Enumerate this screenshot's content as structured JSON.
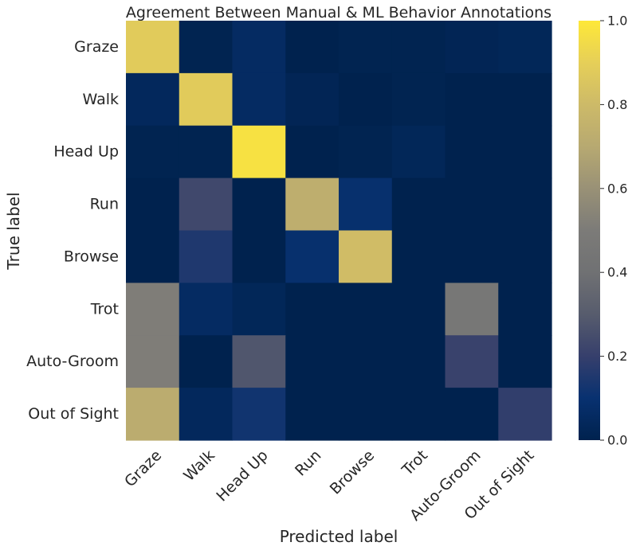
{
  "chart_data": {
    "type": "heatmap",
    "title": "Agreement Between Manual & ML Behavior Annotations",
    "xlabel": "Predicted label",
    "ylabel": "True label",
    "x_categories": [
      "Graze",
      "Walk",
      "Head Up",
      "Run",
      "Browse",
      "Trot",
      "Auto-Groom",
      "Out of Sight"
    ],
    "y_categories": [
      "Graze",
      "Walk",
      "Head Up",
      "Run",
      "Browse",
      "Trot",
      "Auto-Groom",
      "Out of Sight"
    ],
    "values": [
      [
        0.88,
        0.01,
        0.06,
        0.0,
        0.01,
        0.01,
        0.02,
        0.03
      ],
      [
        0.04,
        0.88,
        0.06,
        0.02,
        0.0,
        0.01,
        0.0,
        0.0
      ],
      [
        0.01,
        0.01,
        0.97,
        0.0,
        0.01,
        0.03,
        0.0,
        0.0
      ],
      [
        0.0,
        0.23,
        0.0,
        0.73,
        0.09,
        0.0,
        0.0,
        0.0
      ],
      [
        0.0,
        0.15,
        0.0,
        0.09,
        0.81,
        0.0,
        0.0,
        0.0
      ],
      [
        0.51,
        0.06,
        0.03,
        0.0,
        0.0,
        0.0,
        0.46,
        0.0
      ],
      [
        0.51,
        0.0,
        0.28,
        0.0,
        0.0,
        0.0,
        0.21,
        0.0
      ],
      [
        0.72,
        0.04,
        0.12,
        0.0,
        0.0,
        0.0,
        0.0,
        0.19
      ]
    ],
    "colormap": "cividis",
    "colorbar": {
      "range": [
        0.0,
        1.0
      ],
      "ticks": [
        "0.0",
        "0.2",
        "0.4",
        "0.6",
        "0.8",
        "1.0"
      ]
    }
  }
}
